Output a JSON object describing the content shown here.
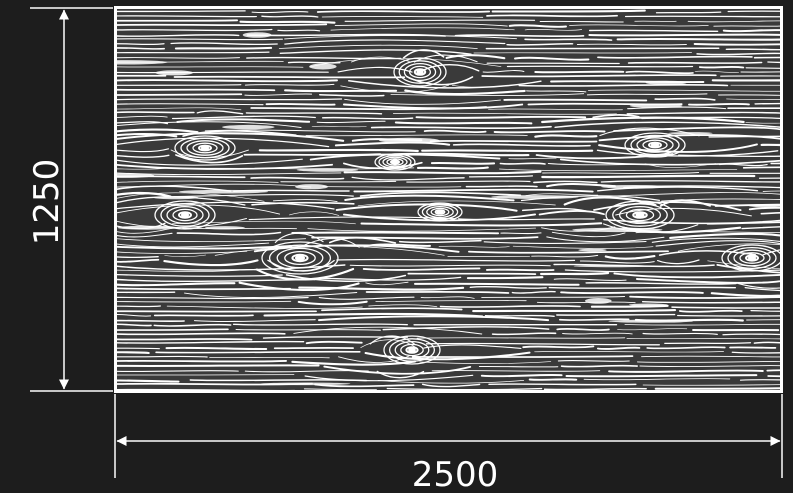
{
  "colors": {
    "background": "#1d1d1d",
    "panel": "#3a3a3a",
    "grain": "#ffffff",
    "dimension_line": "#ffffff"
  },
  "dimensions": {
    "height_label": "1250",
    "width_label": "2500"
  }
}
